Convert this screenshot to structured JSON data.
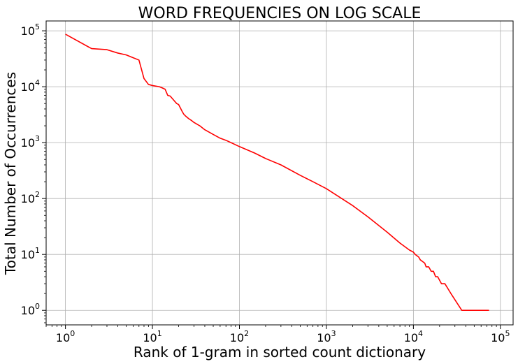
{
  "chart_data": {
    "type": "line",
    "title": "WORD FREQUENCIES ON LOG SCALE",
    "xlabel": "Rank of 1-gram in sorted count dictionary",
    "ylabel": "Total Number of Occurrences",
    "x_scale": "log",
    "y_scale": "log",
    "xlim": [
      0.6,
      140000
    ],
    "ylim": [
      0.55,
      150000
    ],
    "grid": true,
    "line_color": "#ff0000",
    "x_ticks": [
      {
        "value": 1,
        "base": "10",
        "exp": "0"
      },
      {
        "value": 10,
        "base": "10",
        "exp": "1"
      },
      {
        "value": 100,
        "base": "10",
        "exp": "2"
      },
      {
        "value": 1000,
        "base": "10",
        "exp": "3"
      },
      {
        "value": 10000,
        "base": "10",
        "exp": "4"
      },
      {
        "value": 100000,
        "base": "10",
        "exp": "5"
      }
    ],
    "y_ticks": [
      {
        "value": 1,
        "base": "10",
        "exp": "0"
      },
      {
        "value": 10,
        "base": "10",
        "exp": "1"
      },
      {
        "value": 100,
        "base": "10",
        "exp": "2"
      },
      {
        "value": 1000,
        "base": "10",
        "exp": "3"
      },
      {
        "value": 10000,
        "base": "10",
        "exp": "4"
      },
      {
        "value": 100000,
        "base": "10",
        "exp": "5"
      }
    ],
    "series": [
      {
        "x": [
          1,
          2,
          3,
          4,
          5,
          6,
          7,
          8,
          9,
          10,
          12,
          13,
          14,
          15,
          16,
          18,
          19,
          20,
          22,
          23,
          24,
          26,
          28,
          30,
          35,
          40,
          50,
          60,
          70,
          80,
          100,
          150,
          200,
          300,
          500,
          700,
          1000,
          1500,
          2000,
          3000,
          5000,
          7000,
          9000,
          10000,
          10500,
          11500,
          12000,
          13500,
          14000,
          15000,
          16000,
          17000,
          18000,
          19000,
          21000,
          23000,
          27000,
          36000,
          74000
        ],
        "y": [
          87000,
          48000,
          46000,
          40000,
          37000,
          33000,
          30000,
          14000,
          11000,
          10500,
          10000,
          9500,
          9000,
          7000,
          6800,
          5500,
          5000,
          4800,
          3600,
          3200,
          3000,
          2700,
          2500,
          2300,
          2000,
          1700,
          1400,
          1200,
          1100,
          1000,
          850,
          650,
          520,
          400,
          260,
          200,
          150,
          100,
          75,
          47,
          25,
          16,
          12,
          11,
          10,
          9,
          8,
          7,
          6,
          6,
          5,
          5,
          4,
          4,
          3,
          3,
          2,
          1,
          1
        ]
      }
    ]
  }
}
